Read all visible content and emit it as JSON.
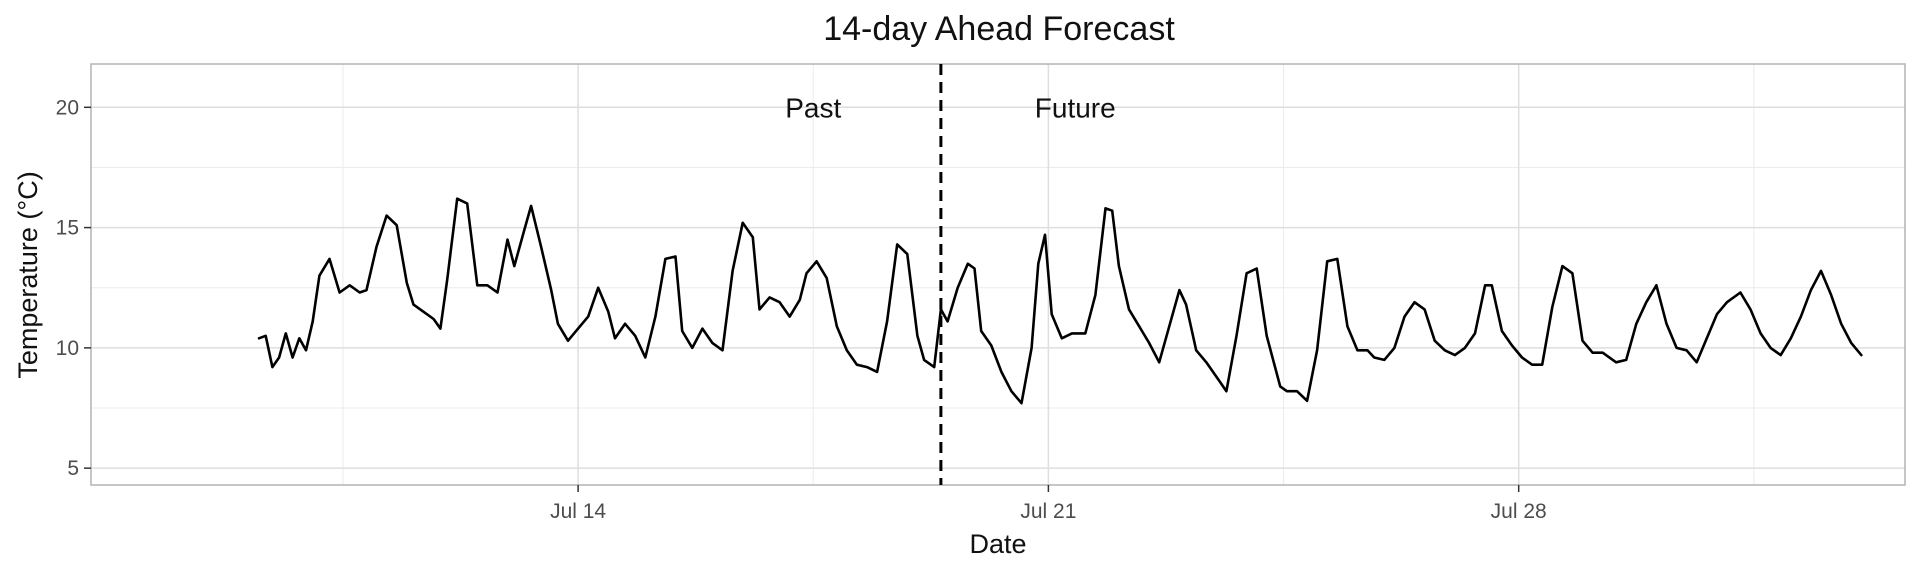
{
  "chart_data": {
    "type": "line",
    "title": "14-day Ahead Forecast",
    "xlabel": "Date",
    "ylabel": "Temperature (°C)",
    "x_tick_labels": [
      "Jul 14",
      "Jul 21",
      "Jul 28"
    ],
    "x_ticks": [
      14,
      21,
      28
    ],
    "x_minor_ticks": [
      10.5,
      17.5,
      24.5,
      31.5
    ],
    "xlim": [
      6.75,
      33.75
    ],
    "y_ticks": [
      5,
      10,
      15,
      20
    ],
    "y_tick_labels": [
      "5",
      "10",
      "15",
      "20"
    ],
    "ylim": [
      4.3,
      21.8
    ],
    "grid": true,
    "split_at": 19.4,
    "annotations": [
      {
        "text": "Past",
        "x": 17.5,
        "y": 20
      },
      {
        "text": "Future",
        "x": 21.4,
        "y": 20
      }
    ],
    "series": [
      {
        "color": "#000000",
        "x": [
          9.25,
          9.35,
          9.45,
          9.55,
          9.65,
          9.75,
          9.85,
          9.95,
          10.05,
          10.15,
          10.3,
          10.45,
          10.6,
          10.75,
          10.85,
          11.0,
          11.15,
          11.3,
          11.45,
          11.55,
          11.7,
          11.85,
          11.95,
          12.05,
          12.2,
          12.35,
          12.5,
          12.65,
          12.8,
          12.95,
          13.05,
          13.2,
          13.3,
          13.45,
          13.6,
          13.7,
          13.85,
          14.0,
          14.15,
          14.3,
          14.45,
          14.55,
          14.7,
          14.85,
          15.0,
          15.15,
          15.3,
          15.45,
          15.55,
          15.7,
          15.85,
          16.0,
          16.15,
          16.3,
          16.45,
          16.6,
          16.7,
          16.85,
          17.0,
          17.15,
          17.3,
          17.4,
          17.55,
          17.7,
          17.85,
          18.0,
          18.15,
          18.3,
          18.45,
          18.6,
          18.75,
          18.9,
          19.05,
          19.15,
          19.3,
          19.4
        ],
        "values": [
          10.4,
          10.5,
          9.2,
          9.6,
          10.6,
          9.6,
          10.4,
          9.9,
          11.1,
          13.0,
          13.7,
          12.3,
          12.6,
          12.3,
          12.4,
          14.2,
          15.5,
          15.1,
          12.7,
          11.8,
          11.5,
          11.2,
          10.8,
          12.8,
          16.2,
          16.0,
          12.6,
          12.6,
          12.3,
          14.5,
          13.4,
          14.9,
          15.9,
          14.2,
          12.4,
          11.0,
          10.3,
          10.8,
          11.3,
          12.5,
          11.5,
          10.4,
          11.0,
          10.5,
          9.6,
          11.3,
          13.7,
          13.8,
          10.7,
          10.0,
          10.8,
          10.2,
          9.9,
          13.2,
          15.2,
          14.6,
          11.6,
          12.1,
          11.9,
          11.3,
          12.0,
          13.1,
          13.6,
          12.9,
          10.9,
          9.9,
          9.3,
          9.2,
          9.0,
          11.1,
          14.3,
          13.9,
          10.5,
          9.5,
          9.2,
          11.6
        ]
      },
      {
        "color": "#000000",
        "x": [
          19.4,
          19.5,
          19.65,
          19.8,
          19.9,
          20.0,
          20.15,
          20.3,
          20.45,
          20.6,
          20.75,
          20.85,
          20.95,
          21.05,
          21.2,
          21.35,
          21.55,
          21.7,
          21.85,
          21.95,
          22.05,
          22.2,
          22.35,
          22.5,
          22.65,
          22.8,
          22.95,
          23.05,
          23.2,
          23.35,
          23.5,
          23.65,
          23.8,
          23.95,
          24.1,
          24.25,
          24.45,
          24.55,
          24.7,
          24.85,
          25.0,
          25.15,
          25.3,
          25.45,
          25.6,
          25.75,
          25.85,
          26.0,
          26.15,
          26.3,
          26.45,
          26.6,
          26.75,
          26.9,
          27.05,
          27.2,
          27.35,
          27.5,
          27.6,
          27.75,
          27.9,
          28.05,
          28.2,
          28.35,
          28.5,
          28.65,
          28.8,
          28.95,
          29.1,
          29.25,
          29.45,
          29.6,
          29.75,
          29.9,
          30.05,
          30.2,
          30.35,
          30.5,
          30.65,
          30.8,
          30.95,
          31.1,
          31.3,
          31.45,
          31.6,
          31.75,
          31.9,
          32.05,
          32.2,
          32.35,
          32.5,
          32.65,
          32.8,
          32.95,
          33.1
        ],
        "values": [
          11.6,
          11.1,
          12.5,
          13.5,
          13.3,
          10.7,
          10.1,
          9.0,
          8.2,
          7.7,
          10.0,
          13.5,
          14.7,
          11.4,
          10.4,
          10.6,
          10.6,
          12.2,
          15.8,
          15.7,
          13.4,
          11.6,
          10.9,
          10.2,
          9.4,
          10.9,
          12.4,
          11.8,
          9.9,
          9.4,
          8.8,
          8.2,
          10.5,
          13.1,
          13.3,
          10.5,
          8.4,
          8.2,
          8.2,
          7.8,
          9.9,
          13.6,
          13.7,
          10.9,
          9.9,
          9.9,
          9.6,
          9.5,
          10.0,
          11.3,
          11.9,
          11.6,
          10.3,
          9.9,
          9.7,
          10.0,
          10.6,
          12.6,
          12.6,
          10.7,
          10.1,
          9.6,
          9.3,
          9.3,
          11.7,
          13.4,
          13.1,
          10.3,
          9.8,
          9.8,
          9.4,
          9.5,
          11.0,
          11.9,
          12.6,
          11.0,
          10.0,
          9.9,
          9.4,
          10.4,
          11.4,
          11.9,
          12.3,
          11.6,
          10.6,
          10.0,
          9.7,
          10.4,
          11.3,
          12.4,
          13.2,
          12.2,
          11.0,
          10.2,
          9.7
        ]
      }
    ]
  }
}
